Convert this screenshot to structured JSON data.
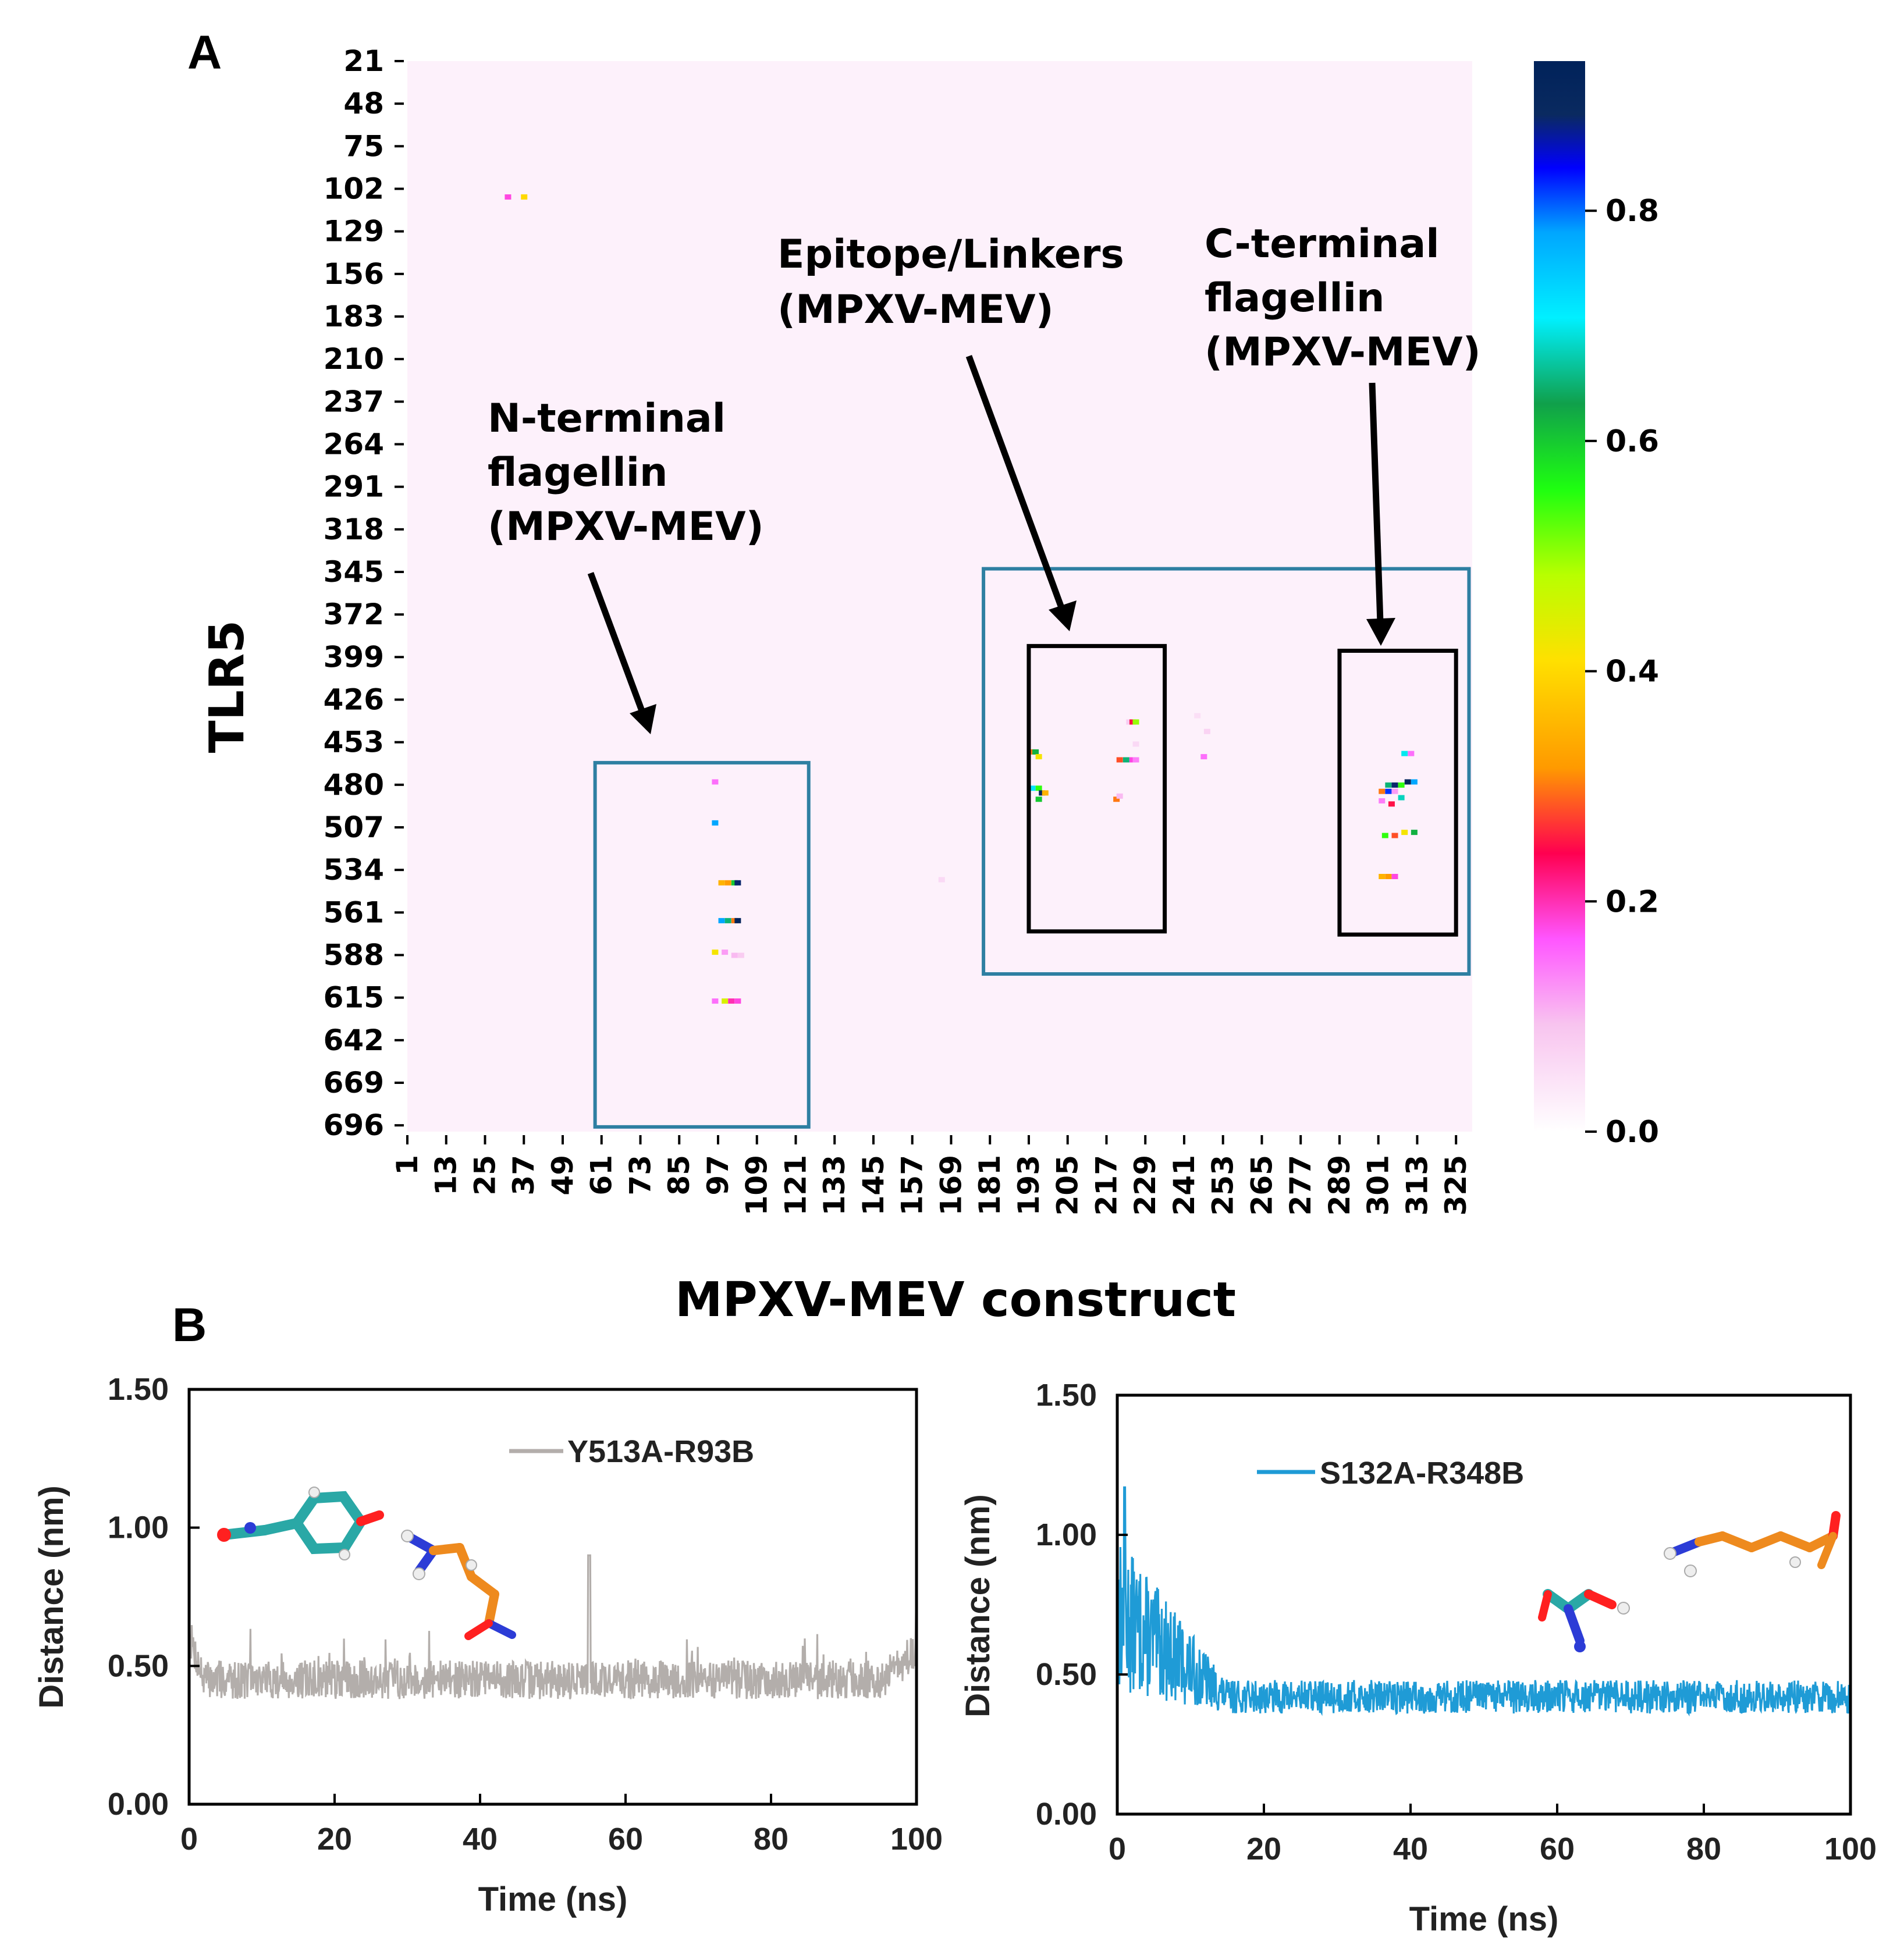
{
  "panel_a": {
    "letter": "A",
    "colorbar_ticks": [
      "0.0",
      "0.2",
      "0.4",
      "0.6",
      "0.8"
    ],
    "colorbar_max": 0.93,
    "annotations": {
      "n_term": [
        "N-terminal",
        "flagellin",
        "(MPXV-MEV)"
      ],
      "epitope": [
        "Epitope/Linkers",
        "(MPXV-MEV)"
      ],
      "c_term": [
        "C-terminal",
        "flagellin",
        "(MPXV-MEV)"
      ]
    },
    "colors": {
      "background": "#fdf1fb",
      "box_blue": "#2e7fa2",
      "box_black": "#000000"
    }
  },
  "panel_b": {
    "letter": "B",
    "left": {
      "legend": "Y513A-R93B",
      "color": "#b3aeab"
    },
    "right": {
      "legend": "S132A-R348B",
      "color": "#1f9bd6"
    }
  },
  "chart_data": [
    {
      "type": "heatmap",
      "title": "",
      "xlabel": "MPXV-MEV construct",
      "ylabel": "TLR5",
      "x_range": [
        1,
        330
      ],
      "y_range": [
        21,
        700
      ],
      "x_ticks": [
        1,
        13,
        25,
        37,
        49,
        61,
        73,
        85,
        97,
        109,
        121,
        133,
        145,
        157,
        169,
        181,
        193,
        205,
        217,
        229,
        241,
        253,
        265,
        277,
        289,
        301,
        313,
        325
      ],
      "y_ticks": [
        21,
        48,
        75,
        102,
        129,
        156,
        183,
        210,
        237,
        264,
        291,
        318,
        345,
        372,
        399,
        426,
        453,
        480,
        507,
        534,
        561,
        588,
        615,
        642,
        669,
        696
      ],
      "colorbar_range": [
        0.0,
        0.93
      ],
      "colormap": "gist_ncar_r",
      "contacts": [
        {
          "x": 32,
          "y": 107,
          "v": 0.18
        },
        {
          "x": 37,
          "y": 107,
          "v": 0.4
        },
        {
          "x": 96,
          "y": 478,
          "v": 0.15
        },
        {
          "x": 96,
          "y": 504,
          "v": 0.78
        },
        {
          "x": 98,
          "y": 542,
          "v": 0.35
        },
        {
          "x": 100,
          "y": 542,
          "v": 0.32
        },
        {
          "x": 102,
          "y": 542,
          "v": 0.6
        },
        {
          "x": 103,
          "y": 542,
          "v": 0.88
        },
        {
          "x": 98,
          "y": 566,
          "v": 0.78
        },
        {
          "x": 100,
          "y": 566,
          "v": 0.65
        },
        {
          "x": 102,
          "y": 566,
          "v": 0.3
        },
        {
          "x": 103,
          "y": 566,
          "v": 0.92
        },
        {
          "x": 96,
          "y": 586,
          "v": 0.42
        },
        {
          "x": 99,
          "y": 586,
          "v": 0.12
        },
        {
          "x": 102,
          "y": 588,
          "v": 0.1
        },
        {
          "x": 104,
          "y": 588,
          "v": 0.08
        },
        {
          "x": 96,
          "y": 617,
          "v": 0.15
        },
        {
          "x": 99,
          "y": 617,
          "v": 0.45
        },
        {
          "x": 101,
          "y": 617,
          "v": 0.2
        },
        {
          "x": 103,
          "y": 617,
          "v": 0.18
        },
        {
          "x": 166,
          "y": 540,
          "v": 0.06
        },
        {
          "x": 224,
          "y": 440,
          "v": 0.08
        },
        {
          "x": 225,
          "y": 440,
          "v": 0.25
        },
        {
          "x": 226,
          "y": 440,
          "v": 0.5
        },
        {
          "x": 226,
          "y": 454,
          "v": 0.06
        },
        {
          "x": 194,
          "y": 459,
          "v": 0.3
        },
        {
          "x": 195,
          "y": 459,
          "v": 0.62
        },
        {
          "x": 196,
          "y": 462,
          "v": 0.42
        },
        {
          "x": 221,
          "y": 464,
          "v": 0.28
        },
        {
          "x": 223,
          "y": 464,
          "v": 0.65
        },
        {
          "x": 225,
          "y": 464,
          "v": 0.18
        },
        {
          "x": 226,
          "y": 464,
          "v": 0.14
        },
        {
          "x": 194,
          "y": 482,
          "v": 0.72
        },
        {
          "x": 196,
          "y": 482,
          "v": 0.55
        },
        {
          "x": 197,
          "y": 485,
          "v": 0.9
        },
        {
          "x": 198,
          "y": 485,
          "v": 0.35
        },
        {
          "x": 196,
          "y": 489,
          "v": 0.6
        },
        {
          "x": 220,
          "y": 489,
          "v": 0.3
        },
        {
          "x": 221,
          "y": 487,
          "v": 0.1
        },
        {
          "x": 245,
          "y": 436,
          "v": 0.05
        },
        {
          "x": 248,
          "y": 446,
          "v": 0.07
        },
        {
          "x": 247,
          "y": 462,
          "v": 0.15
        },
        {
          "x": 309,
          "y": 460,
          "v": 0.7
        },
        {
          "x": 311,
          "y": 460,
          "v": 0.15
        },
        {
          "x": 304,
          "y": 480,
          "v": 0.65
        },
        {
          "x": 306,
          "y": 480,
          "v": 0.88
        },
        {
          "x": 308,
          "y": 480,
          "v": 0.55
        },
        {
          "x": 310,
          "y": 478,
          "v": 0.92
        },
        {
          "x": 312,
          "y": 478,
          "v": 0.78
        },
        {
          "x": 302,
          "y": 484,
          "v": 0.3
        },
        {
          "x": 304,
          "y": 484,
          "v": 0.82
        },
        {
          "x": 306,
          "y": 484,
          "v": 0.12
        },
        {
          "x": 308,
          "y": 488,
          "v": 0.68
        },
        {
          "x": 302,
          "y": 490,
          "v": 0.14
        },
        {
          "x": 305,
          "y": 492,
          "v": 0.25
        },
        {
          "x": 303,
          "y": 512,
          "v": 0.55
        },
        {
          "x": 306,
          "y": 512,
          "v": 0.28
        },
        {
          "x": 309,
          "y": 510,
          "v": 0.42
        },
        {
          "x": 312,
          "y": 510,
          "v": 0.62
        },
        {
          "x": 302,
          "y": 538,
          "v": 0.35
        },
        {
          "x": 304,
          "y": 538,
          "v": 0.32
        },
        {
          "x": 306,
          "y": 538,
          "v": 0.18
        }
      ],
      "boxes": [
        {
          "role": "region",
          "x": [
            59,
            125
          ],
          "y": [
            466,
            697
          ],
          "color": "blue"
        },
        {
          "role": "region",
          "x": [
            179,
            329
          ],
          "y": [
            343,
            600
          ],
          "color": "blue"
        },
        {
          "role": "sub",
          "x": [
            193,
            235
          ],
          "y": [
            392,
            573
          ],
          "color": "black"
        },
        {
          "role": "sub",
          "x": [
            289,
            325
          ],
          "y": [
            395,
            575
          ],
          "color": "black"
        }
      ]
    },
    {
      "type": "line",
      "title": "",
      "series": [
        {
          "name": "Y513A-R93B",
          "baseline": 0.45,
          "noise": 0.07,
          "spike": {
            "x": 55,
            "y": 0.9
          },
          "end_rise": {
            "from": 95,
            "to": 0.65
          }
        }
      ],
      "xlabel": "Time (ns)",
      "ylabel": "Distance (nm)",
      "xlim": [
        0,
        100
      ],
      "ylim": [
        0.0,
        1.5
      ],
      "x_ticks": [
        0,
        20,
        40,
        60,
        80,
        100
      ],
      "y_ticks": [
        "0.00",
        "0.50",
        "1.00",
        "1.50"
      ]
    },
    {
      "type": "line",
      "title": "",
      "series": [
        {
          "name": "S132A-R348B",
          "baseline": 0.42,
          "noise": 0.06,
          "early_peak": {
            "x": 1,
            "y": 1.17
          },
          "decay_until": 15
        }
      ],
      "xlabel": "Time (ns)",
      "ylabel": "Distance (nm)",
      "xlim": [
        0,
        100
      ],
      "ylim": [
        0.0,
        1.5
      ],
      "x_ticks": [
        0,
        20,
        40,
        60,
        80,
        100
      ],
      "y_ticks": [
        "0.00",
        "0.50",
        "1.00",
        "1.50"
      ]
    }
  ]
}
